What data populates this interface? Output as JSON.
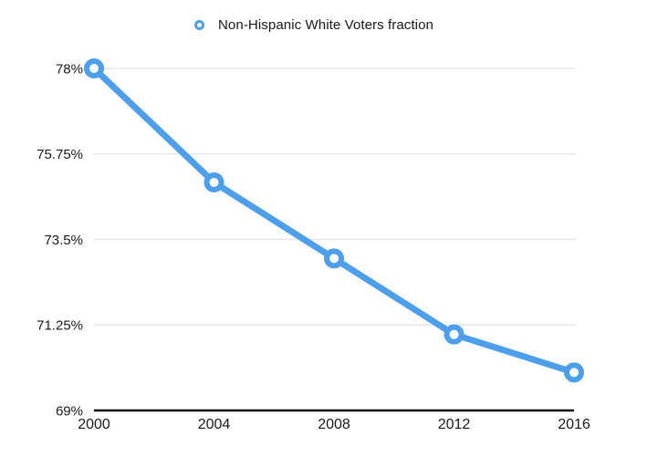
{
  "legend": {
    "label": "Non-Hispanic White Voters fraction",
    "marker_color": "#4D9FEC"
  },
  "chart_data": {
    "type": "line",
    "title": "",
    "categories": [
      "2000",
      "2004",
      "2008",
      "2012",
      "2016"
    ],
    "series": [
      {
        "name": "Non-Hispanic White Voters fraction",
        "values": [
          78,
          75,
          73,
          71,
          70
        ]
      }
    ],
    "xlabel": "",
    "ylabel": "",
    "ylim": [
      69,
      78
    ],
    "y_ticks": [
      {
        "value": 69,
        "label": "69%"
      },
      {
        "value": 71.25,
        "label": "71.25%"
      },
      {
        "value": 73.5,
        "label": "73.5%"
      },
      {
        "value": 75.75,
        "label": "75.75%"
      },
      {
        "value": 78,
        "label": "78%"
      }
    ],
    "grid": true,
    "legend_position": "top-center",
    "colors": {
      "line": "#4D9FEC",
      "marker_fill": "#FFFFFF",
      "grid": "#E7E7E7",
      "axis": "#111111",
      "text": "#1A1A1A"
    }
  }
}
